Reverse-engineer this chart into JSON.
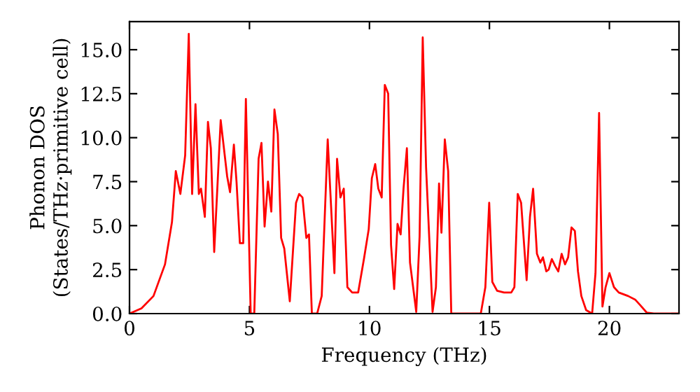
{
  "chart_data": {
    "type": "line",
    "xlabel": "Frequency (THz)",
    "ylabel": "Phonon DOS\n(States/THz·primitive cell)",
    "xlim": [
      0,
      22.9
    ],
    "ylim": [
      0,
      16.6
    ],
    "xticks": [
      0,
      5,
      10,
      15,
      20
    ],
    "yticks": [
      {
        "value": 0,
        "label": "0.0"
      },
      {
        "value": 2.5,
        "label": "2.5"
      },
      {
        "value": 5,
        "label": "5.0"
      },
      {
        "value": 7.5,
        "label": "7.5"
      },
      {
        "value": 10,
        "label": "10.0"
      },
      {
        "value": 12.5,
        "label": "12.5"
      },
      {
        "value": 15,
        "label": "15.0"
      }
    ],
    "marker": "none",
    "line_style": "solid",
    "series": [
      {
        "color": "#ff0000",
        "x": [
          0,
          0.5,
          1.0,
          1.48,
          1.77,
          1.93,
          2.12,
          2.32,
          2.47,
          2.61,
          2.75,
          2.89,
          2.98,
          3.14,
          3.27,
          3.39,
          3.53,
          3.8,
          4.07,
          4.19,
          4.35,
          4.46,
          4.6,
          4.74,
          4.85,
          5.05,
          5.2,
          5.38,
          5.5,
          5.63,
          5.77,
          5.91,
          6.04,
          6.18,
          6.32,
          6.45,
          6.68,
          6.94,
          7.07,
          7.21,
          7.37,
          7.48,
          7.6,
          7.82,
          8.01,
          8.26,
          8.54,
          8.65,
          8.79,
          8.93,
          9.08,
          9.28,
          9.53,
          9.77,
          9.97,
          10.1,
          10.24,
          10.37,
          10.51,
          10.64,
          10.78,
          10.9,
          11.03,
          11.17,
          11.3,
          11.42,
          11.56,
          11.69,
          11.95,
          12.09,
          12.22,
          12.36,
          12.63,
          12.77,
          12.9,
          13.0,
          13.14,
          13.28,
          13.41,
          14.64,
          14.83,
          14.99,
          15.12,
          15.32,
          15.61,
          15.91,
          16.04,
          16.18,
          16.32,
          16.55,
          16.69,
          16.82,
          16.98,
          17.12,
          17.23,
          17.37,
          17.47,
          17.6,
          17.74,
          17.87,
          18.01,
          18.15,
          18.28,
          18.42,
          18.56,
          18.69,
          18.83,
          19.03,
          19.28,
          19.42,
          19.57,
          19.71,
          19.84,
          20.0,
          20.19,
          20.39,
          20.78,
          21.07,
          21.27,
          21.56,
          21.85,
          22.9
        ],
        "values": [
          0,
          0.3,
          1.0,
          2.8,
          5.2,
          8.1,
          6.8,
          9.0,
          15.9,
          6.8,
          11.9,
          6.8,
          7.1,
          5.5,
          10.9,
          9.4,
          3.5,
          11.0,
          7.8,
          6.9,
          9.6,
          7.5,
          4.0,
          4.0,
          12.2,
          0,
          0,
          8.8,
          9.7,
          4.95,
          7.5,
          5.8,
          11.6,
          10.2,
          4.3,
          3.7,
          0.7,
          6.3,
          6.8,
          6.6,
          4.3,
          4.5,
          0,
          0,
          1.0,
          9.9,
          2.3,
          8.8,
          6.6,
          7.1,
          1.5,
          1.2,
          1.2,
          3.1,
          4.8,
          7.7,
          8.5,
          7.1,
          6.6,
          13.0,
          12.5,
          3.9,
          1.4,
          5.1,
          4.5,
          7.1,
          9.4,
          2.9,
          0.1,
          4.4,
          15.7,
          8.3,
          0.1,
          1.5,
          7.4,
          4.6,
          9.9,
          8.1,
          0,
          0,
          1.5,
          6.3,
          1.8,
          1.3,
          1.2,
          1.2,
          1.5,
          6.8,
          6.3,
          1.9,
          5.5,
          7.1,
          3.4,
          2.9,
          3.2,
          2.4,
          2.5,
          3.1,
          2.7,
          2.4,
          3.4,
          2.8,
          3.2,
          4.9,
          4.7,
          2.4,
          1.0,
          0.2,
          0,
          2.3,
          11.4,
          0.4,
          1.5,
          2.3,
          1.5,
          1.2,
          1.0,
          0.8,
          0.5,
          0.05,
          0,
          0
        ]
      }
    ]
  }
}
